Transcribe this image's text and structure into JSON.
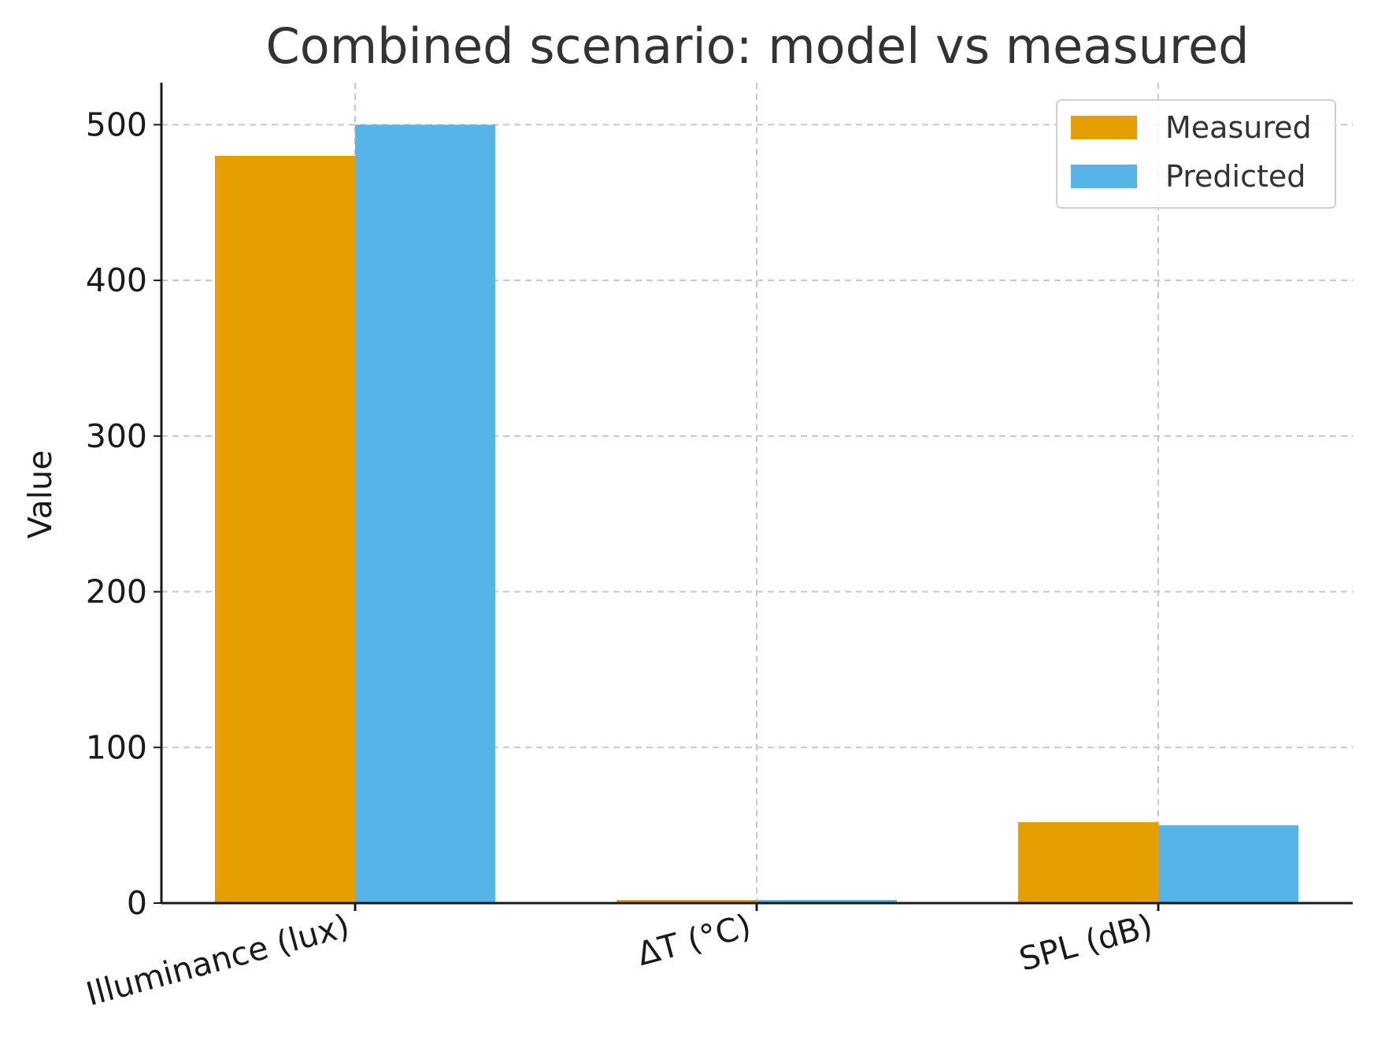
{
  "chart_data": {
    "type": "bar",
    "title": "Combined scenario: model vs measured",
    "xlabel": "",
    "ylabel": "Value",
    "categories": [
      "Illuminance (lux)",
      "ΔT (°C)",
      "SPL (dB)"
    ],
    "series": [
      {
        "name": "Measured",
        "values": [
          480,
          2,
          52
        ],
        "color": "#E69F00"
      },
      {
        "name": "Predicted",
        "values": [
          500,
          2,
          50
        ],
        "color": "#56B4E9"
      }
    ],
    "ylim": [
      0,
      527
    ],
    "yticks": [
      0,
      100,
      200,
      300,
      400,
      500
    ],
    "grid": true,
    "legend": "upper-right"
  }
}
